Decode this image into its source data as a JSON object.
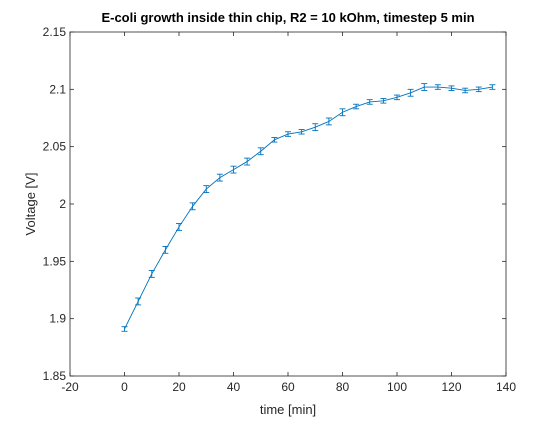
{
  "chart_data": {
    "type": "line",
    "title": "E-coli growth inside thin chip, R2 = 10 kOhm, timestep 5 min",
    "xlabel": "time [min]",
    "ylabel": "Voltage [V]",
    "xlim": [
      -20,
      140
    ],
    "ylim": [
      1.85,
      2.15
    ],
    "xticks": [
      -20,
      0,
      20,
      40,
      60,
      80,
      100,
      120,
      140
    ],
    "yticks": [
      1.85,
      1.9,
      1.95,
      2,
      2.05,
      2.1,
      2.15
    ],
    "xtick_labels": [
      "-20",
      "0",
      "20",
      "40",
      "60",
      "80",
      "100",
      "120",
      "140"
    ],
    "ytick_labels": [
      "1.85",
      "1.9",
      "1.95",
      "2",
      "2.05",
      "2.1",
      "2.15"
    ],
    "grid": false,
    "color": "#0072BD",
    "series": [
      {
        "x": [
          0,
          5,
          10,
          15,
          20,
          25,
          30,
          35,
          40,
          45,
          50,
          55,
          60,
          65,
          70,
          75,
          80,
          85,
          90,
          95,
          100,
          105,
          110,
          115,
          120,
          125,
          130,
          135
        ],
        "y": [
          1.891,
          1.915,
          1.939,
          1.96,
          1.98,
          1.998,
          2.013,
          2.023,
          2.03,
          2.037,
          2.046,
          2.056,
          2.061,
          2.063,
          2.067,
          2.072,
          2.08,
          2.085,
          2.089,
          2.09,
          2.093,
          2.097,
          2.102,
          2.102,
          2.101,
          2.099,
          2.1,
          2.102
        ],
        "err": [
          0.002,
          0.003,
          0.003,
          0.003,
          0.003,
          0.003,
          0.003,
          0.003,
          0.003,
          0.003,
          0.003,
          0.002,
          0.002,
          0.002,
          0.003,
          0.003,
          0.003,
          0.002,
          0.002,
          0.002,
          0.002,
          0.003,
          0.003,
          0.002,
          0.002,
          0.002,
          0.002,
          0.002
        ]
      }
    ]
  }
}
